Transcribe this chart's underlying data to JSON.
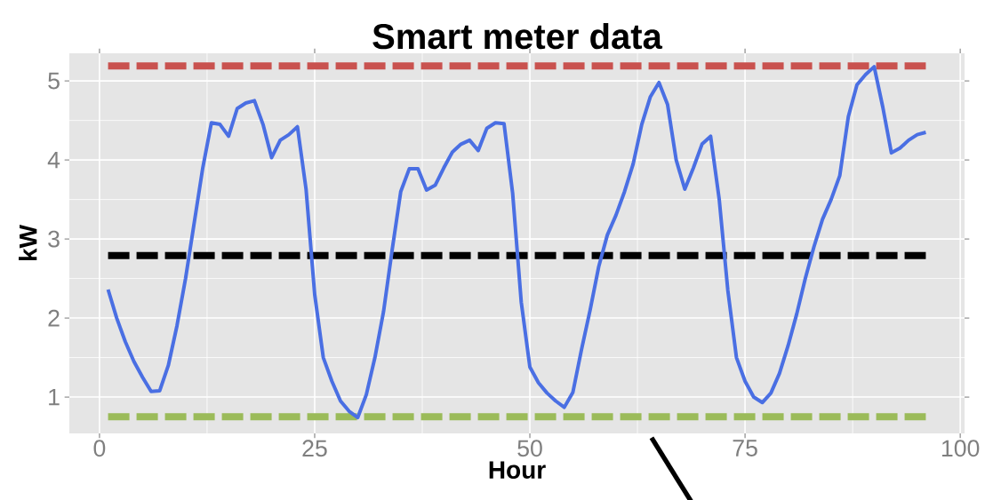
{
  "chart_data": {
    "type": "line",
    "title": "Smart meter data",
    "xlabel": "Hour",
    "ylabel": "kW",
    "x": [
      1,
      2,
      3,
      4,
      5,
      6,
      7,
      8,
      9,
      10,
      11,
      12,
      13,
      14,
      15,
      16,
      17,
      18,
      19,
      20,
      21,
      22,
      23,
      24,
      25,
      26,
      27,
      28,
      29,
      30,
      31,
      32,
      33,
      34,
      35,
      36,
      37,
      38,
      39,
      40,
      41,
      42,
      43,
      44,
      45,
      46,
      47,
      48,
      49,
      50,
      51,
      52,
      53,
      54,
      55,
      56,
      57,
      58,
      59,
      60,
      61,
      62,
      63,
      64,
      65,
      66,
      67,
      68,
      69,
      70,
      71,
      72,
      73,
      74,
      75,
      76,
      77,
      78,
      79,
      80,
      81,
      82,
      83,
      84,
      85,
      86,
      87,
      88,
      89,
      90,
      91,
      92,
      93,
      94,
      95,
      96
    ],
    "series": [
      {
        "color": "#4a6fe3",
        "values": [
          2.36,
          2.0,
          1.7,
          1.45,
          1.25,
          1.07,
          1.08,
          1.4,
          1.9,
          2.5,
          3.2,
          3.9,
          4.47,
          4.45,
          4.3,
          4.65,
          4.72,
          4.75,
          4.45,
          4.03,
          4.25,
          4.32,
          4.42,
          3.63,
          2.3,
          1.5,
          1.2,
          0.95,
          0.82,
          0.74,
          1.03,
          1.5,
          2.08,
          2.86,
          3.6,
          3.89,
          3.89,
          3.62,
          3.68,
          3.9,
          4.1,
          4.2,
          4.25,
          4.12,
          4.4,
          4.47,
          4.46,
          3.58,
          2.2,
          1.38,
          1.18,
          1.05,
          0.95,
          0.87,
          1.06,
          1.6,
          2.1,
          2.65,
          3.05,
          3.3,
          3.6,
          3.95,
          4.45,
          4.8,
          4.98,
          4.7,
          4.0,
          3.63,
          3.9,
          4.2,
          4.3,
          3.5,
          2.35,
          1.5,
          1.2,
          1.0,
          0.93,
          1.05,
          1.3,
          1.65,
          2.05,
          2.5,
          2.9,
          3.25,
          3.5,
          3.8,
          4.55,
          4.95,
          5.08,
          5.18,
          4.67,
          4.09,
          4.15,
          4.25,
          4.32,
          4.35
        ]
      }
    ],
    "xlim": [
      -3.5,
      100.5
    ],
    "ylim": [
      0.54,
      5.35
    ],
    "xticks": [
      0,
      25,
      50,
      75,
      100
    ],
    "yticks": [
      1,
      2,
      3,
      4,
      5
    ],
    "grid": true,
    "line_style": "solid",
    "ref_lines": [
      {
        "axis": "y",
        "value": 5.19,
        "color": "#c9524f",
        "line_style": "dashed"
      },
      {
        "axis": "y",
        "value": 2.79,
        "color": "#000000",
        "line_style": "dashed"
      },
      {
        "axis": "y",
        "value": 0.75,
        "color": "#9bbb59",
        "line_style": "dashed"
      }
    ]
  }
}
